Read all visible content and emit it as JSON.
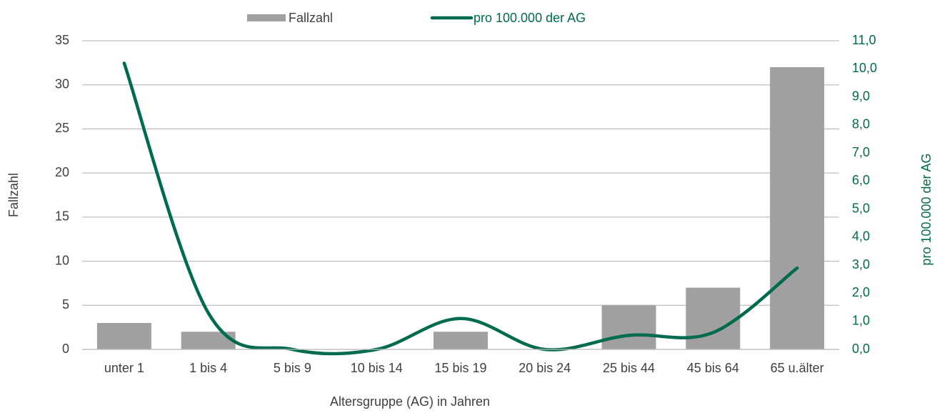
{
  "chart_data": {
    "type": "bar",
    "xlabel": "Altersgruppe (AG) in Jahren",
    "ylabel": "Fallzahl",
    "y2label": "pro 100.000 der AG",
    "categories": [
      "unter 1",
      "1 bis 4",
      "5 bis 9",
      "10 bis 14",
      "15 bis 19",
      "20 bis 24",
      "25 bis 44",
      "45 bis 64",
      "65 u.älter"
    ],
    "series": [
      {
        "name": "Fallzahl",
        "type": "bar",
        "color": "#a0a0a0",
        "values": [
          3,
          2,
          0,
          0,
          2,
          0,
          5,
          7,
          32
        ]
      },
      {
        "name": "pro 100.000 der AG",
        "type": "line",
        "axis": "y2",
        "color": "#006b4f",
        "values": [
          10.2,
          1.3,
          0.0,
          0.0,
          1.1,
          0.0,
          0.5,
          0.6,
          2.9
        ]
      }
    ],
    "ylim": [
      0,
      35
    ],
    "yticks": [
      0,
      5,
      10,
      15,
      20,
      25,
      30,
      35
    ],
    "y2lim": [
      0,
      11
    ],
    "y2ticks": [
      {
        "value": 0,
        "label": "0,0"
      },
      {
        "value": 1,
        "label": "1,0"
      },
      {
        "value": 2,
        "label": "2,0"
      },
      {
        "value": 3,
        "label": "3,0"
      },
      {
        "value": 4,
        "label": "4,0"
      },
      {
        "value": 5,
        "label": "5,0"
      },
      {
        "value": 6,
        "label": "6,0"
      },
      {
        "value": 7,
        "label": "7,0"
      },
      {
        "value": 8,
        "label": "8,0"
      },
      {
        "value": 9,
        "label": "9,0"
      },
      {
        "value": 10,
        "label": "10,0"
      },
      {
        "value": 11,
        "label": "11,0"
      }
    ],
    "grid": true,
    "legend": "top"
  }
}
